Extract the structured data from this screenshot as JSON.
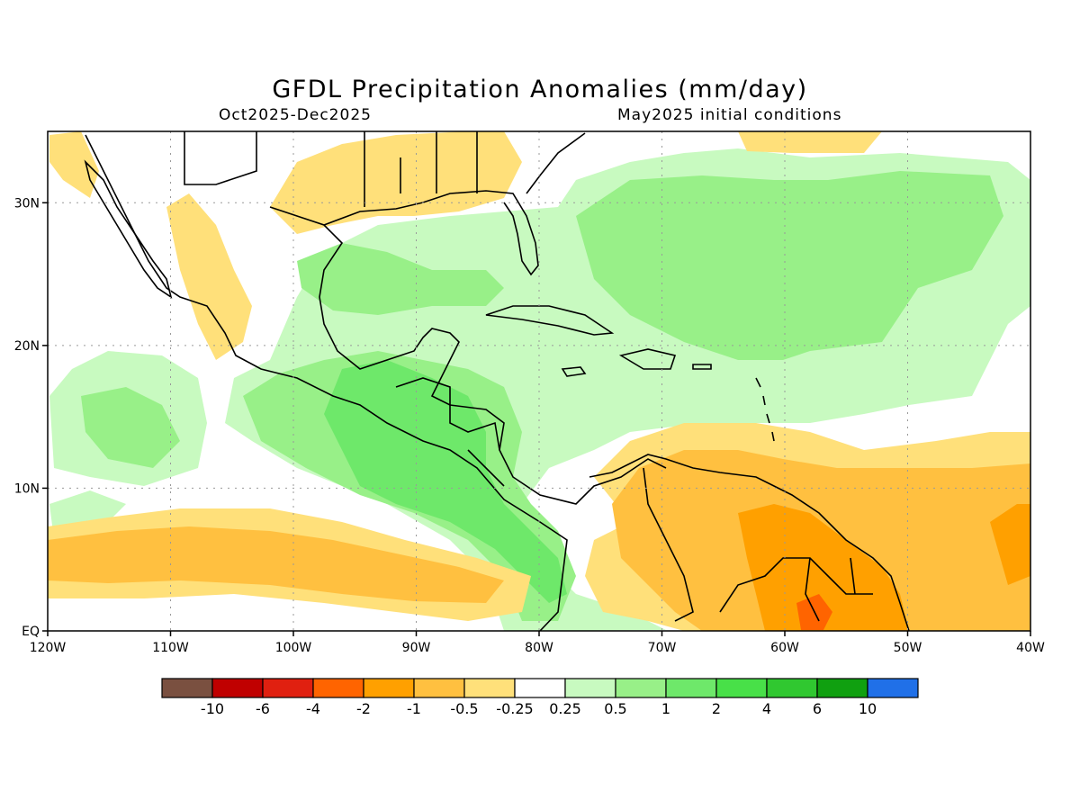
{
  "title": "GFDL Precipitation Anomalies (mm/day)",
  "subtitle_left": "Oct2025-Dec2025",
  "subtitle_right": "May2025 initial conditions",
  "map": {
    "lon_range": [
      -120,
      -40
    ],
    "lat_range": [
      0,
      35
    ],
    "lon_ticks": [
      {
        "v": -120,
        "label": "120W"
      },
      {
        "v": -110,
        "label": "110W"
      },
      {
        "v": -100,
        "label": "100W"
      },
      {
        "v": -90,
        "label": "90W"
      },
      {
        "v": -80,
        "label": "80W"
      },
      {
        "v": -70,
        "label": "70W"
      },
      {
        "v": -60,
        "label": "60W"
      },
      {
        "v": -50,
        "label": "50W"
      },
      {
        "v": -40,
        "label": "40W"
      }
    ],
    "lat_ticks": [
      {
        "v": 0,
        "label": "EQ"
      },
      {
        "v": 10,
        "label": "10N"
      },
      {
        "v": 20,
        "label": "20N"
      },
      {
        "v": 30,
        "label": "30N"
      }
    ],
    "grid": "dotted"
  },
  "legend": {
    "colors": [
      "#7a5040",
      "#c00000",
      "#e02010",
      "#ff6400",
      "#ffa000",
      "#ffc040",
      "#ffe07a",
      "#ffffff",
      "#c8fac0",
      "#98f088",
      "#6ee86a",
      "#48e048",
      "#30c830",
      "#10a010",
      "#2070e8"
    ],
    "labels": [
      "-10",
      "-6",
      "-4",
      "-2",
      "-1",
      "-0.5",
      "-0.25",
      "0.25",
      "0.5",
      "1",
      "2",
      "4",
      "6",
      "10"
    ]
  },
  "colors": {
    "pos_light": "#c8fac0",
    "pos_mid": "#98f088",
    "pos_strong": "#6ee86a",
    "neg_light": "#ffe07a",
    "neg_mid": "#ffc040",
    "neg_strong": "#ffa000",
    "neg_max": "#ff6400"
  }
}
